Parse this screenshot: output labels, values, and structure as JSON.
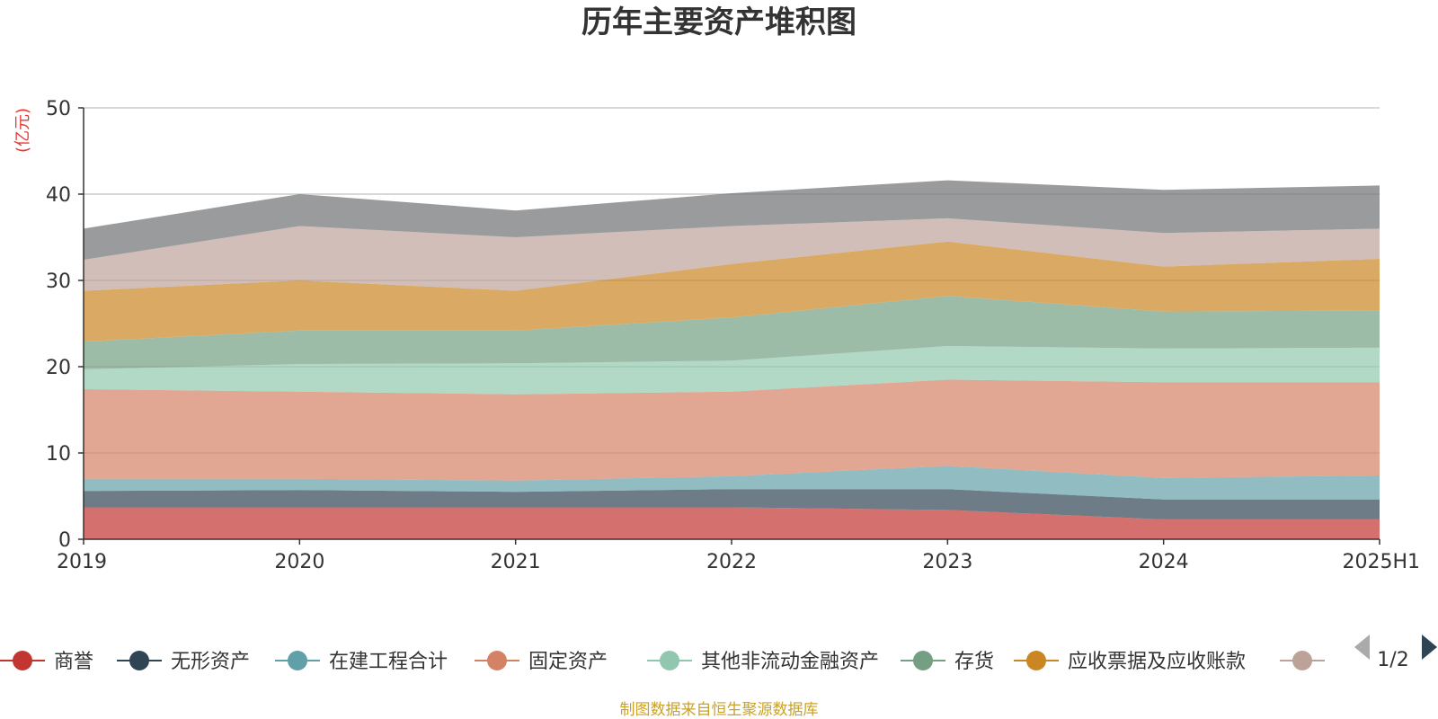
{
  "chart_data": {
    "type": "area",
    "stacked": true,
    "title": "历年主要资产堆积图",
    "unit_label": "(亿元)",
    "source": "制图数据来自恒生聚源数据库",
    "categories": [
      "2019",
      "2020",
      "2021",
      "2022",
      "2023",
      "2024",
      "2025H1"
    ],
    "ylim": [
      0,
      50
    ],
    "yticks": [
      0,
      10,
      20,
      30,
      40,
      50
    ],
    "grid": true,
    "legend_position": "bottom",
    "legend_page": "1/2",
    "series": [
      {
        "name": "商誉",
        "color": "#c23531",
        "values": [
          3.7,
          3.7,
          3.7,
          3.7,
          3.4,
          2.3,
          2.3
        ]
      },
      {
        "name": "无形资产",
        "color": "#2f4554",
        "values": [
          1.9,
          2.0,
          1.8,
          2.1,
          2.4,
          2.3,
          2.3
        ]
      },
      {
        "name": "在建工程合计",
        "color": "#61a0a8",
        "values": [
          1.4,
          1.3,
          1.3,
          1.5,
          2.7,
          2.5,
          2.8
        ]
      },
      {
        "name": "固定资产",
        "color": "#d48265",
        "values": [
          10.4,
          10.1,
          10.0,
          9.8,
          10.0,
          11.1,
          10.8
        ]
      },
      {
        "name": "其他非流动金融资产",
        "color": "#91c7ae",
        "values": [
          2.3,
          3.2,
          3.6,
          3.6,
          3.9,
          3.9,
          4.0
        ]
      },
      {
        "name": "存货",
        "color": "#749f83",
        "values": [
          3.2,
          3.9,
          3.8,
          5.0,
          5.8,
          4.3,
          4.3
        ]
      },
      {
        "name": "应收票据及应收账款",
        "color": "#ca8622",
        "values": [
          5.9,
          5.8,
          4.6,
          6.2,
          6.3,
          5.2,
          6.0
        ]
      },
      {
        "name": "",
        "color": "#bda29a",
        "values": [
          3.6,
          6.3,
          6.2,
          4.4,
          2.7,
          3.9,
          3.5
        ]
      },
      {
        "name": "",
        "color": "#6e7074",
        "values": [
          3.6,
          3.7,
          3.1,
          3.8,
          4.4,
          5.0,
          5.0
        ]
      }
    ]
  }
}
